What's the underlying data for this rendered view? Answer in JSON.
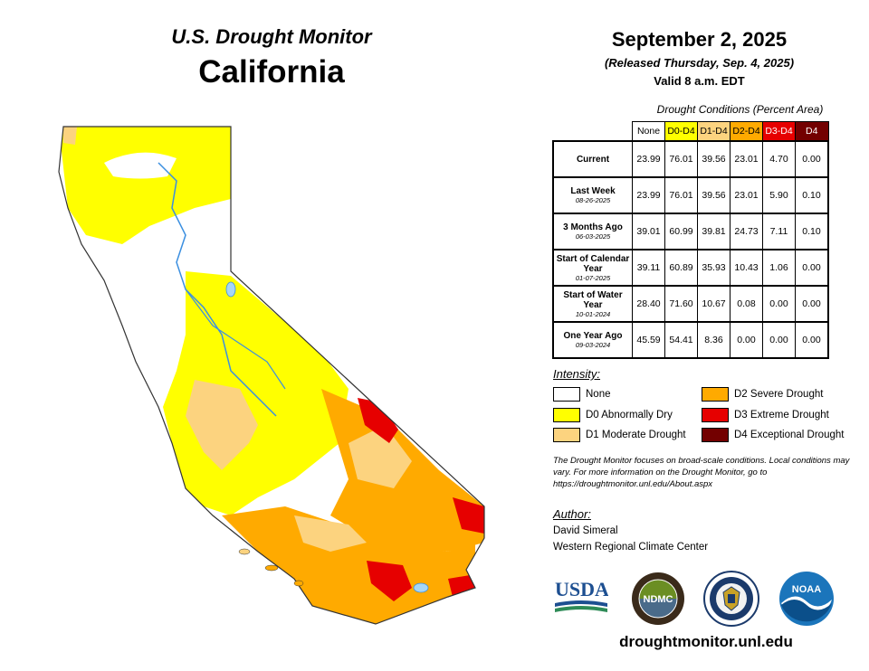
{
  "header": {
    "top_title": "U.S. Drought Monitor",
    "region": "California",
    "date": "September 2, 2025",
    "released": "(Released Thursday, Sep. 4, 2025)",
    "valid": "Valid 8 a.m. EDT"
  },
  "conditions": {
    "caption": "Drought Conditions (Percent Area)",
    "columns": [
      "None",
      "D0-D4",
      "D1-D4",
      "D2-D4",
      "D3-D4",
      "D4"
    ],
    "rows": [
      {
        "label": "Current",
        "sub": "",
        "values": [
          "23.99",
          "76.01",
          "39.56",
          "23.01",
          "4.70",
          "0.00"
        ]
      },
      {
        "label": "Last Week",
        "sub": "08-26-2025",
        "values": [
          "23.99",
          "76.01",
          "39.56",
          "23.01",
          "5.90",
          "0.10"
        ]
      },
      {
        "label": "3 Months Ago",
        "sub": "06-03-2025",
        "values": [
          "39.01",
          "60.99",
          "39.81",
          "24.73",
          "7.11",
          "0.10"
        ]
      },
      {
        "label": "Start of Calendar Year",
        "sub": "01-07-2025",
        "values": [
          "39.11",
          "60.89",
          "35.93",
          "10.43",
          "1.06",
          "0.00"
        ]
      },
      {
        "label": "Start of Water Year",
        "sub": "10-01-2024",
        "values": [
          "28.40",
          "71.60",
          "10.67",
          "0.08",
          "0.00",
          "0.00"
        ]
      },
      {
        "label": "One Year Ago",
        "sub": "09-03-2024",
        "values": [
          "45.59",
          "54.41",
          "8.36",
          "0.00",
          "0.00",
          "0.00"
        ]
      }
    ]
  },
  "legend": {
    "title": "Intensity:",
    "items": [
      {
        "label": "None",
        "color": "#ffffff"
      },
      {
        "label": "D0 Abnormally Dry",
        "color": "#ffff00"
      },
      {
        "label": "D1 Moderate Drought",
        "color": "#fcd37f"
      },
      {
        "label": "D2 Severe Drought",
        "color": "#ffaa00"
      },
      {
        "label": "D3 Extreme Drought",
        "color": "#e60000"
      },
      {
        "label": "D4 Exceptional Drought",
        "color": "#730000"
      }
    ]
  },
  "note": "The Drought Monitor focuses on broad-scale conditions. Local conditions may vary. For more information on the Drought Monitor, go to https://droughtmonitor.unl.edu/About.aspx",
  "author": {
    "title": "Author:",
    "name": "David Simeral",
    "org": "Western Regional Climate Center"
  },
  "logos": {
    "usda": "USDA",
    "ndmc": "NDMC",
    "doc": "department-of-commerce-seal",
    "noaa": "NOAA"
  },
  "footer_url": "droughtmonitor.unl.edu",
  "map": {
    "region": "California",
    "colors": {
      "none": "#ffffff",
      "d0": "#ffff00",
      "d1": "#fcd37f",
      "d2": "#ffaa00",
      "d3": "#e60000",
      "d4": "#730000",
      "water": "#a6d6f7",
      "river": "#3b8fe0"
    }
  }
}
